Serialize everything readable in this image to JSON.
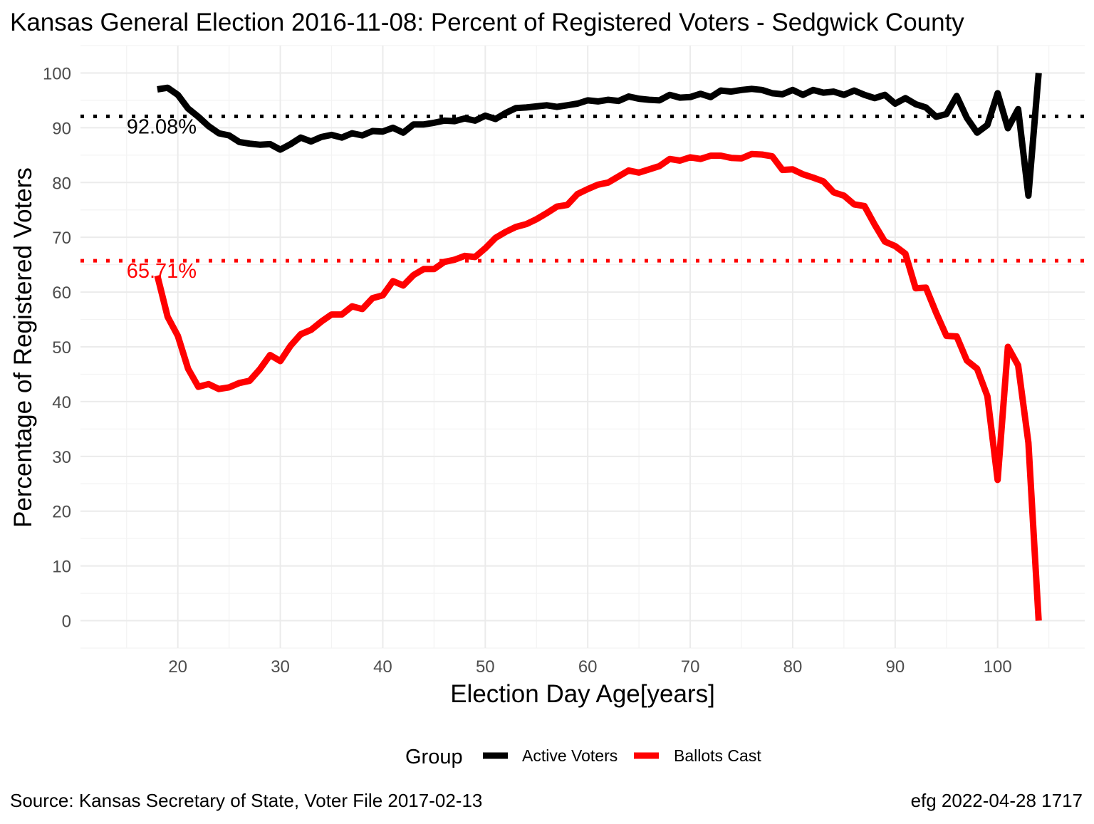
{
  "chart_data": {
    "type": "line",
    "title": "Kansas General Election 2016-11-08:  Percent of Registered Voters - Sedgwick County",
    "xlabel": "Election Day Age[years]",
    "ylabel": "Percentage of Registered Voters",
    "xlim": [
      10.5,
      108.5
    ],
    "ylim": [
      -5,
      105
    ],
    "x_ticks": [
      20,
      30,
      40,
      50,
      60,
      70,
      80,
      90,
      100
    ],
    "y_ticks": [
      0,
      10,
      20,
      30,
      40,
      50,
      60,
      70,
      80,
      90,
      100
    ],
    "grid": true,
    "legend": {
      "title": "Group",
      "position": "bottom",
      "entries": [
        {
          "label": "Active Voters",
          "color": "#000000"
        },
        {
          "label": "Ballots Cast",
          "color": "#ff0000"
        }
      ]
    },
    "reference_lines": [
      {
        "y": 92.08,
        "label": "92.08%",
        "color": "#000000",
        "style": "dotted"
      },
      {
        "y": 65.71,
        "label": "65.71%",
        "color": "#ff0000",
        "style": "dotted"
      }
    ],
    "x": [
      18,
      19,
      20,
      21,
      22,
      23,
      24,
      25,
      26,
      27,
      28,
      29,
      30,
      31,
      32,
      33,
      34,
      35,
      36,
      37,
      38,
      39,
      40,
      41,
      42,
      43,
      44,
      45,
      46,
      47,
      48,
      49,
      50,
      51,
      52,
      53,
      54,
      55,
      56,
      57,
      58,
      59,
      60,
      61,
      62,
      63,
      64,
      65,
      66,
      67,
      68,
      69,
      70,
      71,
      72,
      73,
      74,
      75,
      76,
      77,
      78,
      79,
      80,
      81,
      82,
      83,
      84,
      85,
      86,
      87,
      88,
      89,
      90,
      91,
      92,
      93,
      94,
      95,
      96,
      97,
      98,
      99,
      100,
      101,
      102,
      103,
      104
    ],
    "series": [
      {
        "name": "Active Voters",
        "color": "#000000",
        "values": [
          97.0,
          97.3,
          96.0,
          93.5,
          92.0,
          90.3,
          89.0,
          88.6,
          87.4,
          87.1,
          86.9,
          87.0,
          86.0,
          87.0,
          88.2,
          87.5,
          88.3,
          88.7,
          88.2,
          89.0,
          88.6,
          89.4,
          89.3,
          90.0,
          89.1,
          90.6,
          90.6,
          90.9,
          91.3,
          91.2,
          91.7,
          91.3,
          92.2,
          91.6,
          92.7,
          93.6,
          93.7,
          93.9,
          94.1,
          93.8,
          94.1,
          94.4,
          95.0,
          94.8,
          95.1,
          94.9,
          95.7,
          95.3,
          95.1,
          95.0,
          96.0,
          95.5,
          95.6,
          96.2,
          95.6,
          96.8,
          96.6,
          96.9,
          97.1,
          96.9,
          96.3,
          96.1,
          96.9,
          96.0,
          96.9,
          96.4,
          96.6,
          96.0,
          96.8,
          96.0,
          95.4,
          96.0,
          94.4,
          95.4,
          94.3,
          93.7,
          92.0,
          92.5,
          95.8,
          91.8,
          89.1,
          90.5,
          96.3,
          89.9,
          93.4,
          77.6,
          100.0
        ]
      },
      {
        "name": "Ballots Cast",
        "color": "#ff0000",
        "values": [
          63.0,
          55.5,
          52.0,
          46.0,
          42.7,
          43.2,
          42.3,
          42.6,
          43.4,
          43.8,
          45.9,
          48.5,
          47.4,
          50.2,
          52.3,
          53.1,
          54.6,
          55.9,
          55.9,
          57.4,
          56.9,
          58.9,
          59.4,
          62.0,
          61.2,
          63.1,
          64.2,
          64.2,
          65.5,
          65.9,
          66.6,
          66.4,
          68.0,
          69.9,
          71.0,
          71.9,
          72.4,
          73.3,
          74.4,
          75.6,
          75.9,
          77.9,
          78.8,
          79.6,
          80.0,
          81.1,
          82.2,
          81.8,
          82.4,
          83.0,
          84.3,
          84.0,
          84.6,
          84.3,
          84.9,
          84.9,
          84.5,
          84.4,
          85.2,
          85.1,
          84.8,
          82.3,
          82.4,
          81.5,
          80.9,
          80.2,
          78.2,
          77.6,
          76.0,
          75.7,
          72.3,
          69.2,
          68.4,
          67.0,
          60.7,
          60.8,
          56.2,
          52.0,
          51.9,
          47.5,
          46.0,
          41.0,
          25.7,
          50.0,
          46.6,
          32.5,
          0.0
        ]
      }
    ]
  },
  "caption_left": "Source:  Kansas Secretary of State, Voter File  2017-02-13",
  "caption_right": "efg 2022-04-28 1717"
}
